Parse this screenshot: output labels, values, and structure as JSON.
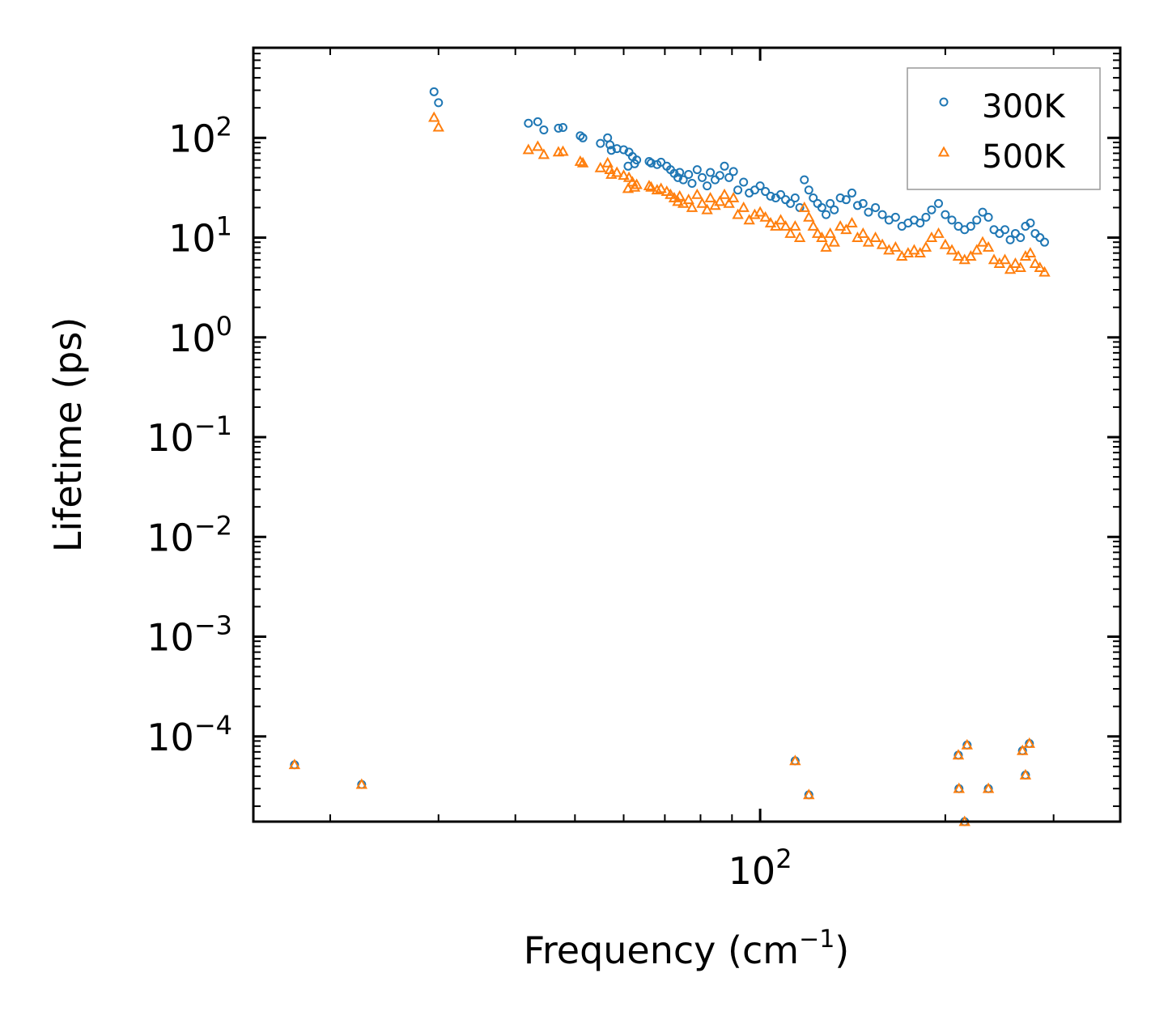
{
  "chart_data": {
    "type": "scatter",
    "title": "",
    "xlabel": {
      "text": "Frequency (cm",
      "sup": "−1",
      "suffix": ")"
    },
    "ylabel": "Lifetime (ps)",
    "xscale": "log",
    "yscale": "log",
    "xlim": [
      15,
      385
    ],
    "ylim": [
      1.4e-05,
      800
    ],
    "x_tick_labels": [
      {
        "value": 100,
        "base": "10",
        "exp": "2"
      }
    ],
    "y_tick_labels": [
      {
        "value": 100,
        "base": "10",
        "exp": "2"
      },
      {
        "value": 10,
        "base": "10",
        "exp": "1"
      },
      {
        "value": 1,
        "base": "10",
        "exp": "0"
      },
      {
        "value": 0.1,
        "base": "10",
        "exp": "−1"
      },
      {
        "value": 0.01,
        "base": "10",
        "exp": "−2"
      },
      {
        "value": 0.001,
        "base": "10",
        "exp": "−3"
      },
      {
        "value": 0.0001,
        "base": "10",
        "exp": "−4"
      }
    ],
    "legend": {
      "position": "top-right",
      "entries": [
        "300K",
        "500K"
      ]
    },
    "series": [
      {
        "name": "300K",
        "marker": "circle",
        "color": "#1f77b4",
        "x": [
          17.5,
          22.5,
          29.5,
          30.0,
          42.0,
          43.5,
          44.5,
          47.0,
          47.8,
          51.0,
          51.5,
          55.0,
          56.5,
          57.0,
          57.3,
          58.5,
          60.0,
          61.0,
          61.2,
          62.0,
          62.5,
          63.0,
          66.0,
          66.5,
          68.0,
          69.0,
          70.5,
          71.5,
          72.5,
          73.5,
          74.0,
          75.0,
          76.5,
          77.5,
          79.0,
          80.5,
          82.0,
          83.0,
          84.5,
          86.0,
          87.5,
          89.0,
          90.5,
          92.0,
          94.0,
          96.0,
          98.0,
          100.0,
          102.0,
          104.0,
          106.0,
          108.0,
          110.0,
          112.0,
          114.0,
          116.0,
          118.0,
          120.0,
          122.0,
          124.0,
          126.0,
          128.0,
          130.0,
          132.0,
          135.0,
          138.0,
          141.0,
          144.0,
          147.0,
          150.0,
          154.0,
          158.0,
          162.0,
          166.0,
          170.0,
          174.0,
          178.0,
          182.0,
          186.0,
          190.0,
          195.0,
          200.0,
          205.0,
          210.0,
          215.0,
          220.0,
          225.0,
          230.0,
          235.0,
          240.0,
          245.0,
          250.0,
          255.0,
          260.0,
          265.0,
          270.0,
          275.0,
          280.0,
          285.0,
          290.0,
          114.0,
          120.0,
          210.0,
          210.5,
          215.0,
          217.0,
          235.0,
          267.0,
          270.0,
          274.0
        ],
        "y": [
          5.2e-05,
          3.3e-05,
          290,
          225,
          140,
          145,
          120,
          125,
          127,
          105,
          100,
          88,
          100,
          85,
          75,
          78,
          76,
          52,
          72,
          65,
          55,
          60,
          58,
          56,
          54,
          57,
          52,
          48,
          44,
          40,
          45,
          38,
          43,
          35,
          48,
          40,
          33,
          45,
          38,
          42,
          52,
          40,
          46,
          30,
          36,
          28,
          30,
          33,
          29,
          26,
          25,
          27,
          24,
          22,
          25,
          20,
          38,
          30,
          25,
          22,
          20,
          17,
          22,
          19,
          25,
          24,
          28,
          21,
          22,
          18,
          20,
          17,
          15,
          16,
          13,
          14,
          15,
          14,
          16,
          19,
          22,
          17,
          15,
          13,
          12,
          13,
          15,
          18,
          16,
          12,
          11,
          12,
          9.5,
          11,
          10,
          13,
          14,
          11,
          10,
          9,
          5.7e-05,
          2.6e-05,
          6.5e-05,
          3e-05,
          1.4e-05,
          8.2e-05,
          3e-05,
          7.2e-05,
          4.1e-05,
          8.5e-05
        ]
      },
      {
        "name": "500K",
        "marker": "triangle",
        "color": "#ff7f0e",
        "x": [
          17.5,
          22.5,
          29.5,
          30.0,
          42.0,
          43.5,
          44.5,
          47.0,
          47.8,
          51.0,
          51.5,
          55.0,
          56.5,
          57.0,
          57.3,
          58.5,
          60.0,
          61.0,
          61.2,
          62.0,
          62.5,
          63.0,
          66.0,
          66.5,
          68.0,
          69.0,
          70.5,
          71.5,
          72.5,
          73.5,
          74.0,
          75.0,
          76.5,
          77.5,
          79.0,
          80.5,
          82.0,
          83.0,
          84.5,
          86.0,
          87.5,
          89.0,
          90.5,
          92.0,
          94.0,
          96.0,
          98.0,
          100.0,
          102.0,
          104.0,
          106.0,
          108.0,
          110.0,
          112.0,
          114.0,
          116.0,
          118.0,
          120.0,
          122.0,
          124.0,
          126.0,
          128.0,
          130.0,
          132.0,
          135.0,
          138.0,
          141.0,
          144.0,
          147.0,
          150.0,
          154.0,
          158.0,
          162.0,
          166.0,
          170.0,
          174.0,
          178.0,
          182.0,
          186.0,
          190.0,
          195.0,
          200.0,
          205.0,
          210.0,
          215.0,
          220.0,
          225.0,
          230.0,
          235.0,
          240.0,
          245.0,
          250.0,
          255.0,
          260.0,
          265.0,
          270.0,
          275.0,
          280.0,
          285.0,
          290.0,
          114.0,
          120.0,
          210.0,
          210.5,
          215.0,
          217.0,
          235.0,
          267.0,
          270.0,
          274.0
        ],
        "y": [
          5.2e-05,
          3.3e-05,
          160,
          128,
          76,
          82,
          68,
          72,
          73,
          58,
          56,
          50,
          56,
          48,
          43,
          45,
          42,
          31,
          40,
          36,
          32,
          34,
          33,
          32,
          30,
          31,
          29,
          27,
          25,
          23,
          26,
          22,
          24,
          20,
          27,
          22,
          19,
          25,
          21,
          23,
          27,
          22,
          25,
          17,
          20,
          15,
          17,
          18,
          16,
          14,
          13,
          15,
          13,
          11,
          13,
          10,
          20,
          16,
          13,
          11,
          10,
          8,
          11,
          9,
          13,
          12,
          14,
          10,
          11,
          9,
          10,
          8.5,
          7.5,
          8,
          6.5,
          7,
          7.5,
          7,
          8,
          10,
          11,
          8.5,
          7.5,
          6.5,
          6,
          6.5,
          7.5,
          9,
          8,
          6,
          5.5,
          6,
          4.8,
          5.5,
          5,
          6.5,
          7,
          5.5,
          5,
          4.5,
          5.7e-05,
          2.6e-05,
          6.5e-05,
          3e-05,
          1.4e-05,
          8.2e-05,
          3e-05,
          7.2e-05,
          4.1e-05,
          8.5e-05
        ]
      }
    ]
  }
}
